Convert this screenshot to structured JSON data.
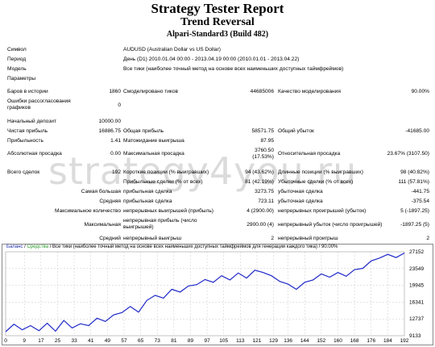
{
  "header": {
    "title": "Strategy Tester Report",
    "subtitle": "Trend Reversal",
    "server": "Alpari-Standard3 (Build 482)"
  },
  "info": {
    "symbol_label": "Символ",
    "symbol_value": "AUDUSD (Australian Dollar vs US Dollar)",
    "period_label": "Период",
    "period_value": "День (D1) 2010.01.04 00:00 - 2013.04.19 00:00 (2010.01.01 - 2013.04.22)",
    "model_label": "Модель",
    "model_value": "Все тики (наиболее точный метод на основе всех наименьших доступных таймфреймов)",
    "params_label": "Параметры"
  },
  "stats": {
    "bars_label": "Баров в истории",
    "bars_value": "1860",
    "ticks_label": "Смоделировано тиков",
    "ticks_value": "44685006",
    "quality_label": "Качество моделирования",
    "quality_value": "90.00%",
    "errors_label": "Ошибки рассогласования графиков",
    "errors_value": "0",
    "deposit_label": "Начальный депозит",
    "deposit_value": "10000.00",
    "net_label": "Чистая прибыль",
    "net_value": "16886.75",
    "gross_profit_label": "Общая прибыль",
    "gross_profit_value": "58571.75",
    "gross_loss_label": "Общий убыток",
    "gross_loss_value": "-41685.00",
    "pf_label": "Прибыльность",
    "pf_value": "1.41",
    "expect_label": "Матожидание выигрыша",
    "expect_value": "87.95",
    "abs_dd_label": "Абсолютная просадка",
    "abs_dd_value": "0.00",
    "max_dd_label": "Максимальная просадка",
    "max_dd_value": "3760.50 (17.53%)",
    "rel_dd_label": "Относительная просадка",
    "rel_dd_value": "23.67% (3107.50)",
    "trades_label": "Всего сделок",
    "trades_value": "192",
    "short_label": "Короткие позиции (% выигравших)",
    "short_value": "94 (43.62%)",
    "long_label": "Длинные позиции (% выигравших)",
    "long_value": "98 (40.82%)",
    "profit_trades_label": "Прибыльные сделки (% от всех)",
    "profit_trades_value": "81 (42.19%)",
    "loss_trades_label": "Убыточные сделки (% от всех)",
    "loss_trades_value": "111 (57.81%)",
    "largest_label": "Самая большая",
    "largest_profit_label": "прибыльная сделка",
    "largest_profit_value": "3273.75",
    "largest_loss_label": "убыточная сделка",
    "largest_loss_value": "-441.75",
    "average_label": "Средняя",
    "avg_profit_label": "прибыльная сделка",
    "avg_profit_value": "723.11",
    "avg_loss_label": "убыточная сделка",
    "avg_loss_value": "-375.54",
    "max_label": "Максимальное количество",
    "max_wins_label": "непрерывных выигрышей (прибыль)",
    "max_wins_value": "4 (2900.00)",
    "max_losses_label": "непрерывных проигрышей (убыток)",
    "max_losses_value": "5 (-1897.25)",
    "maximal_label": "Максимальная",
    "maximal_profit_label": "непрерывная прибыль (число выигрышей)",
    "maximal_profit_value": "2900.00 (4)",
    "maximal_loss_label": "непрерывный убыток (число проигрышей)",
    "maximal_loss_value": "-1897.25 (5)",
    "avg2_label": "Средний",
    "avg_wins_label": "непрерывный выигрыш",
    "avg_wins_value": "2",
    "avg_losses_label": "непрерывный проигрыш",
    "avg_losses_value": "2"
  },
  "watermark": "strategy4you.ru",
  "chart_legend": {
    "balance": "Баланс",
    "sep": " / ",
    "equity": "Средства",
    "rest": " / Все тики (наиболее точный метод на основе всех наименьших доступных таймфреймов для генерации каждого тика) / 90.00%"
  },
  "chart_data": {
    "type": "line",
    "title": "",
    "xlabel": "",
    "ylabel": "",
    "x_ticks": [
      0,
      9,
      17,
      25,
      33,
      41,
      49,
      57,
      65,
      73,
      81,
      89,
      97,
      105,
      113,
      121,
      129,
      136,
      144,
      152,
      160,
      168,
      176,
      184,
      192
    ],
    "y_ticks": [
      9133,
      12737,
      16341,
      19945,
      23549,
      27152
    ],
    "ylim": [
      9133,
      27152
    ],
    "xlim": [
      0,
      192
    ],
    "colors": {
      "balance": "#1e28c8",
      "equity": "#2a9a2a",
      "grid": "#c8c8c8"
    },
    "series": [
      {
        "name": "Баланс",
        "x": [
          0,
          4,
          8,
          12,
          16,
          20,
          24,
          28,
          32,
          36,
          40,
          44,
          48,
          52,
          56,
          60,
          64,
          68,
          72,
          76,
          80,
          84,
          88,
          92,
          96,
          100,
          104,
          108,
          112,
          116,
          120,
          124,
          128,
          132,
          136,
          140,
          144,
          148,
          152,
          156,
          160,
          164,
          168,
          172,
          176,
          180,
          184,
          188,
          192
        ],
        "values": [
          10000,
          11600,
          10400,
          11300,
          10200,
          11800,
          10100,
          12400,
          10800,
          11700,
          11300,
          12900,
          12200,
          13600,
          14100,
          15400,
          14200,
          16700,
          17800,
          17200,
          19100,
          18500,
          19800,
          20100,
          21200,
          20600,
          22000,
          21100,
          22600,
          21500,
          23200,
          22700,
          22000,
          20800,
          20200,
          19100,
          20600,
          21100,
          22400,
          21700,
          22700,
          21900,
          23300,
          23600,
          25200,
          25800,
          26600,
          25900,
          26900
        ]
      }
    ]
  }
}
